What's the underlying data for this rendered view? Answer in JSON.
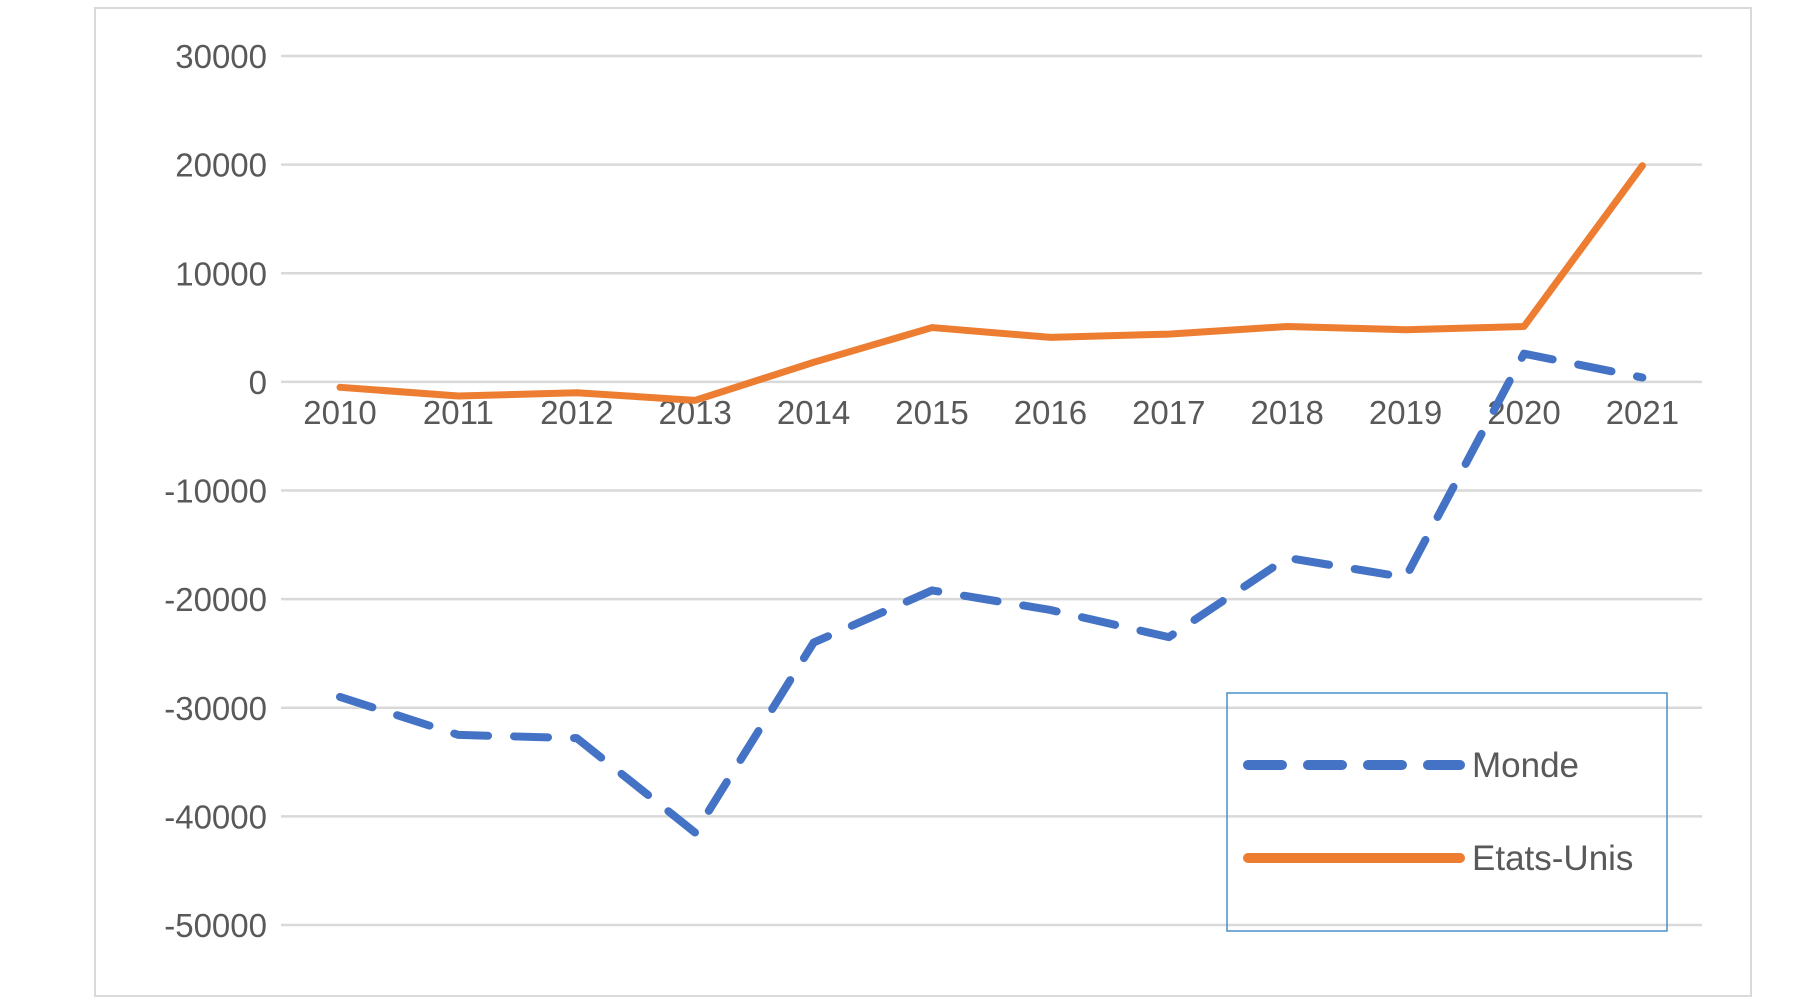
{
  "chart_data": {
    "type": "line",
    "title": "",
    "xlabel": "",
    "ylabel": "",
    "categories": [
      "2010",
      "2011",
      "2012",
      "2013",
      "2014",
      "2015",
      "2016",
      "2017",
      "2018",
      "2019",
      "2020",
      "2021"
    ],
    "ylim": [
      -50000,
      30000
    ],
    "yticks": [
      30000,
      20000,
      10000,
      0,
      -10000,
      -20000,
      -30000,
      -40000,
      -50000
    ],
    "ytick_labels": [
      "30000",
      "20000",
      "10000",
      "0",
      "-10000",
      "-20000",
      "-30000",
      "-40000",
      "-50000"
    ],
    "grid": true,
    "legend_position": "bottom-right",
    "series": [
      {
        "name": "Monde",
        "color": "#4472c4",
        "style": "dashed",
        "values": [
          -29000,
          -32500,
          -32800,
          -41500,
          -24000,
          -19200,
          -21000,
          -23500,
          -16200,
          -18000,
          2600,
          400
        ]
      },
      {
        "name": "Etats-Unis",
        "color": "#ed7d31",
        "style": "solid",
        "values": [
          -500,
          -1300,
          -1000,
          -1700,
          1800,
          5000,
          4100,
          4400,
          5100,
          4800,
          5100,
          19900
        ]
      }
    ]
  }
}
